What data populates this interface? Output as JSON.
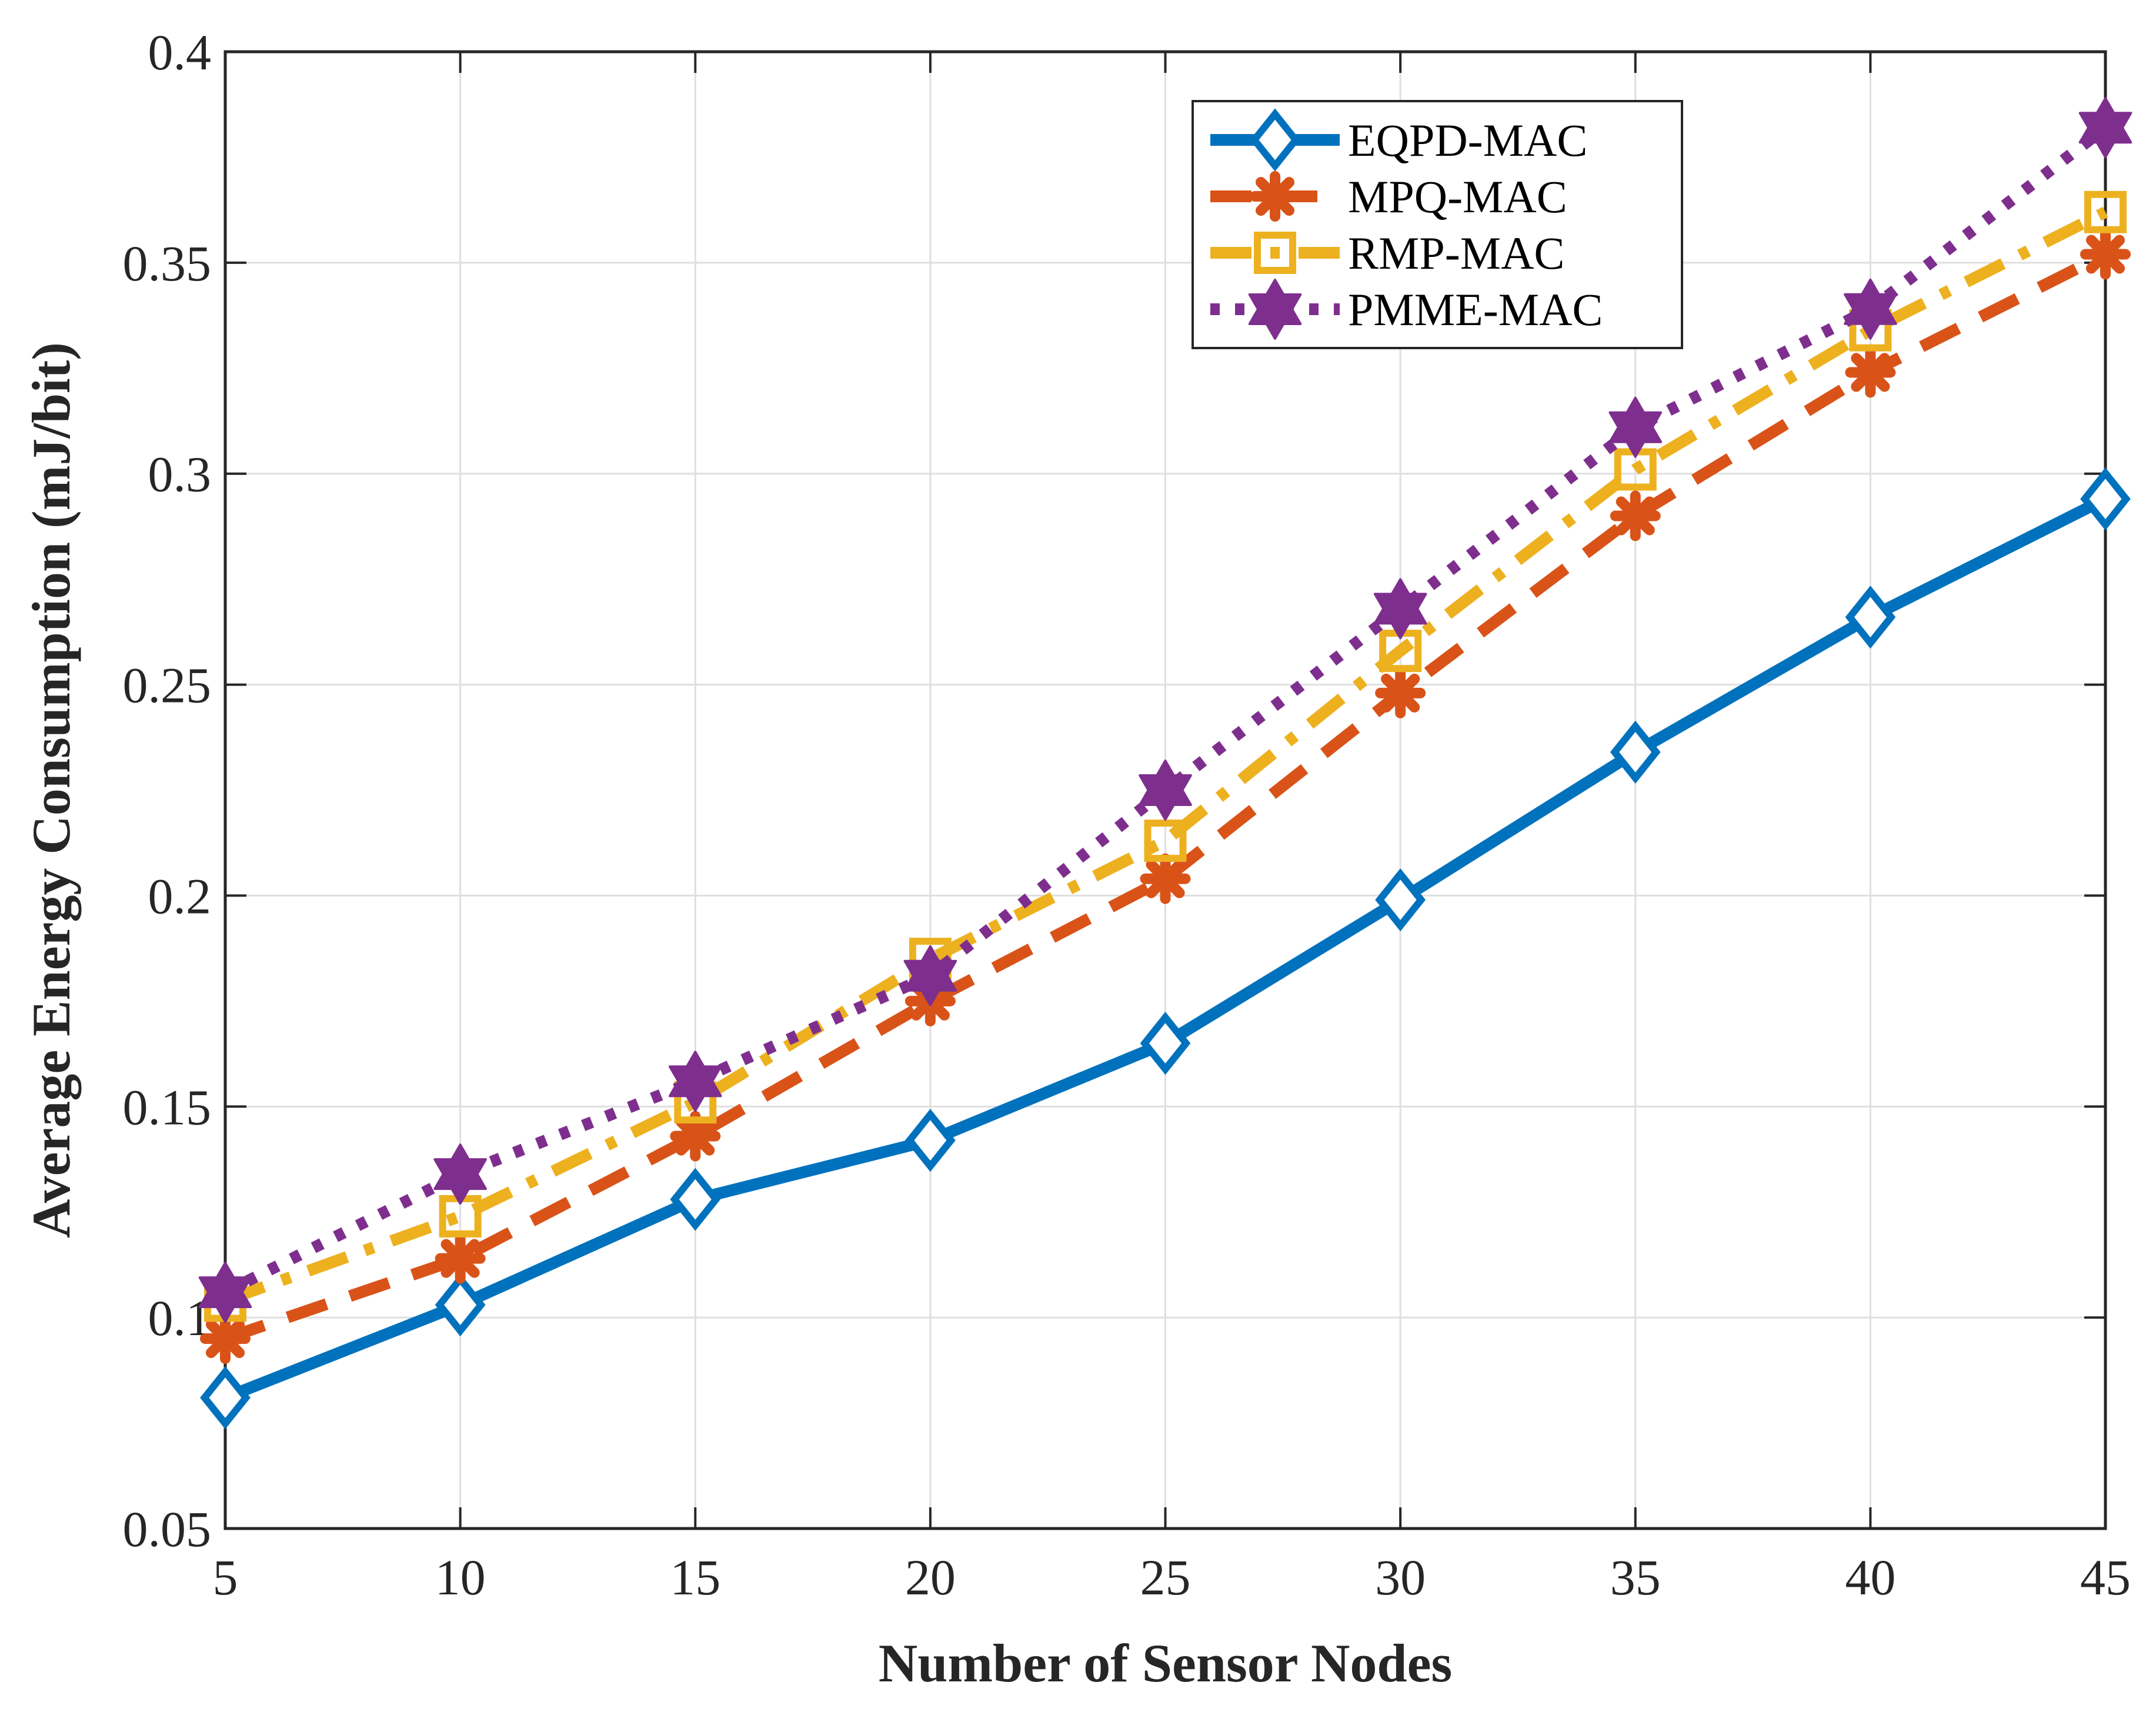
{
  "chart_data": {
    "type": "line",
    "title": "",
    "xlabel": "Number of Sensor Nodes",
    "ylabel": "Average Energy Consumption (mJ/bit)",
    "x": [
      5,
      10,
      15,
      20,
      25,
      30,
      35,
      40,
      45
    ],
    "xlim": [
      5,
      45
    ],
    "ylim": [
      0.05,
      0.4
    ],
    "xticks": [
      "5",
      "10",
      "15",
      "20",
      "25",
      "30",
      "35",
      "40",
      "45"
    ],
    "yticks": [
      "0.05",
      "0.1",
      "0.15",
      "0.2",
      "0.25",
      "0.3",
      "0.35",
      "0.4"
    ],
    "grid": true,
    "legend_position": "top-right",
    "series": [
      {
        "name": "EQPD-MAC",
        "color": "#0072BD",
        "line_style": "solid",
        "marker": "diamond",
        "values": [
          0.081,
          0.103,
          0.128,
          0.142,
          0.165,
          0.199,
          0.234,
          0.266,
          0.294
        ]
      },
      {
        "name": "MPQ-MAC",
        "color": "#D95319",
        "line_style": "dashed",
        "marker": "asterisk",
        "values": [
          0.095,
          0.114,
          0.143,
          0.175,
          0.204,
          0.248,
          0.29,
          0.324,
          0.352
        ]
      },
      {
        "name": "RMP-MAC",
        "color": "#EDB120",
        "line_style": "dash-dot",
        "marker": "square",
        "values": [
          0.104,
          0.124,
          0.151,
          0.185,
          0.213,
          0.258,
          0.301,
          0.334,
          0.362
        ]
      },
      {
        "name": "PMME-MAC",
        "color": "#7E2F8E",
        "line_style": "dotted",
        "marker": "hexagram",
        "values": [
          0.106,
          0.134,
          0.156,
          0.181,
          0.225,
          0.268,
          0.311,
          0.339,
          0.382
        ]
      }
    ]
  }
}
